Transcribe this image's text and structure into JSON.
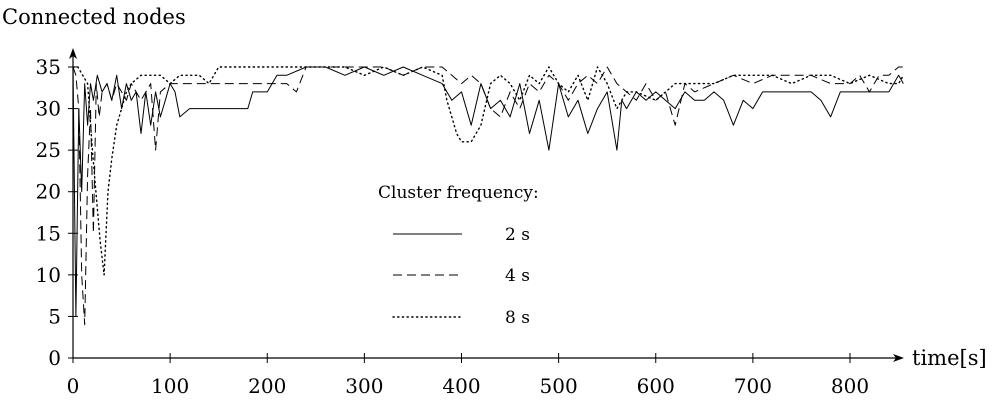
{
  "chart_data": {
    "type": "line",
    "title": "",
    "ylabel": "Connected nodes",
    "xlabel": "time[s]",
    "xlim": [
      0,
      860
    ],
    "ylim": [
      0,
      37
    ],
    "xticks": [
      0,
      100,
      200,
      300,
      400,
      500,
      600,
      700,
      800
    ],
    "yticks": [
      0,
      5,
      10,
      15,
      20,
      25,
      30,
      35
    ],
    "grid": false,
    "legend": {
      "title": "Cluster frequency:",
      "position": "center"
    },
    "series": [
      {
        "name": "2 s",
        "style": "solid",
        "x": [
          0,
          3,
          6,
          9,
          12,
          15,
          18,
          21,
          25,
          30,
          35,
          40,
          45,
          50,
          55,
          60,
          65,
          70,
          75,
          80,
          85,
          90,
          95,
          100,
          105,
          110,
          120,
          140,
          160,
          180,
          185,
          200,
          210,
          220,
          240,
          260,
          280,
          300,
          320,
          340,
          360,
          380,
          390,
          400,
          410,
          420,
          430,
          440,
          450,
          460,
          470,
          480,
          490,
          500,
          510,
          520,
          530,
          540,
          550,
          560,
          565,
          570,
          580,
          590,
          600,
          610,
          620,
          630,
          640,
          650,
          660,
          670,
          680,
          690,
          700,
          710,
          720,
          740,
          760,
          770,
          780,
          790,
          800,
          820,
          840,
          850,
          855
        ],
        "y": [
          35,
          5,
          30,
          20,
          33,
          28,
          33,
          31,
          34,
          32,
          33,
          31,
          34,
          30,
          33,
          31,
          32,
          27,
          32,
          28,
          32,
          29,
          31,
          33,
          32,
          29,
          30,
          30,
          30,
          30,
          32,
          32,
          34,
          34,
          35,
          35,
          34,
          35,
          34,
          35,
          34,
          33,
          31,
          32,
          28,
          33,
          30,
          31,
          29,
          33,
          27,
          31,
          25,
          33,
          29,
          31,
          27,
          30,
          32,
          25,
          31,
          30,
          32,
          31,
          32,
          31,
          30,
          32,
          31,
          31,
          32,
          31,
          28,
          31,
          30,
          32,
          32,
          32,
          32,
          31,
          29,
          32,
          32,
          32,
          32,
          34,
          33
        ]
      },
      {
        "name": "4 s",
        "style": "dashed",
        "x": [
          0,
          3,
          6,
          9,
          12,
          15,
          18,
          21,
          24,
          27,
          30,
          35,
          40,
          45,
          50,
          55,
          60,
          70,
          80,
          85,
          90,
          100,
          120,
          140,
          160,
          180,
          200,
          220,
          230,
          240,
          260,
          280,
          300,
          320,
          340,
          360,
          380,
          390,
          400,
          410,
          420,
          430,
          440,
          450,
          460,
          470,
          480,
          490,
          500,
          510,
          520,
          530,
          540,
          550,
          560,
          570,
          580,
          590,
          600,
          610,
          620,
          630,
          640,
          660,
          680,
          700,
          720,
          740,
          760,
          780,
          800,
          810,
          820,
          830,
          840,
          850,
          855
        ],
        "y": [
          35,
          34,
          30,
          10,
          4,
          22,
          30,
          15,
          33,
          29,
          32,
          33,
          31,
          33,
          32,
          31,
          33,
          31,
          33,
          25,
          32,
          33,
          33,
          33,
          33,
          33,
          33,
          33,
          32,
          35,
          35,
          35,
          35,
          35,
          34,
          35,
          35,
          34,
          33,
          34,
          33,
          30,
          29,
          32,
          30,
          33,
          32,
          34,
          33,
          31,
          33,
          34,
          33,
          35,
          33,
          32,
          31,
          33,
          31,
          32,
          28,
          33,
          32,
          33,
          34,
          33,
          34,
          34,
          34,
          33,
          33,
          34,
          32,
          34,
          34,
          35,
          35
        ]
      },
      {
        "name": "8 s",
        "style": "dotted",
        "x": [
          0,
          5,
          10,
          15,
          20,
          25,
          28,
          32,
          36,
          40,
          45,
          50,
          55,
          60,
          70,
          80,
          90,
          100,
          110,
          120,
          130,
          140,
          150,
          180,
          200,
          220,
          240,
          260,
          280,
          300,
          320,
          340,
          360,
          380,
          385,
          390,
          395,
          400,
          410,
          420,
          430,
          440,
          450,
          460,
          470,
          480,
          490,
          500,
          510,
          520,
          530,
          540,
          550,
          560,
          570,
          580,
          600,
          620,
          640,
          660,
          680,
          700,
          720,
          740,
          760,
          780,
          800,
          820,
          840,
          850,
          855
        ],
        "y": [
          35,
          35,
          34,
          33,
          25,
          18,
          14,
          10,
          20,
          24,
          28,
          30,
          32,
          33,
          34,
          34,
          34,
          33,
          34,
          34,
          34,
          33,
          35,
          35,
          35,
          35,
          35,
          35,
          35,
          34,
          35,
          34,
          35,
          34,
          31,
          29,
          27,
          26,
          26,
          28,
          33,
          34,
          33,
          31,
          34,
          33,
          35,
          33,
          32,
          34,
          31,
          35,
          33,
          30,
          32,
          32,
          31,
          33,
          33,
          33,
          34,
          34,
          34,
          33,
          34,
          34,
          33,
          34,
          33,
          33,
          34
        ]
      }
    ]
  }
}
